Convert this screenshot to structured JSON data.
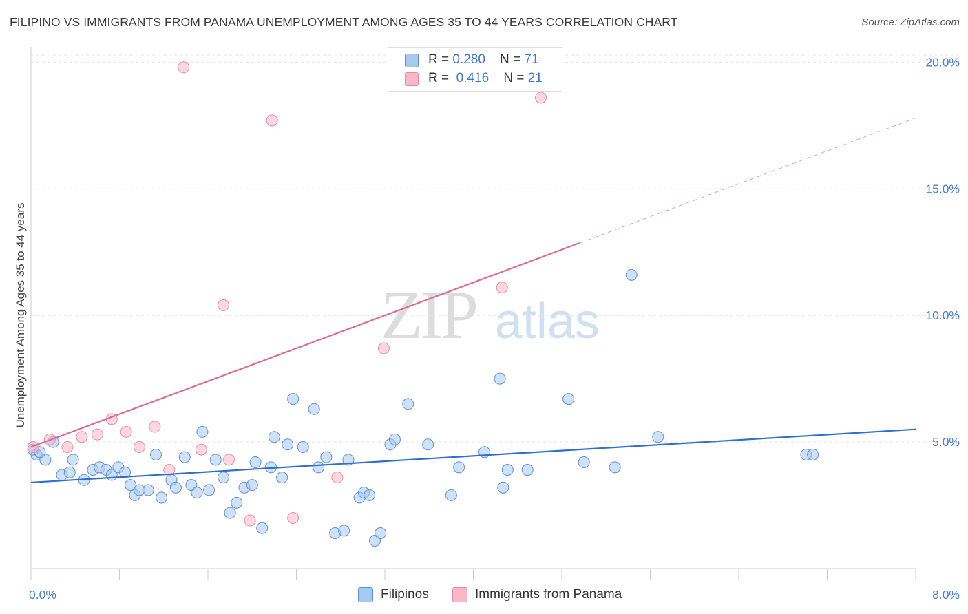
{
  "header": {
    "title": "FILIPINO VS IMMIGRANTS FROM PANAMA UNEMPLOYMENT AMONG AGES 35 TO 44 YEARS CORRELATION CHART",
    "source": "Source: ZipAtlas.com"
  },
  "watermark": {
    "zip": "ZIP",
    "atlas": "atlas"
  },
  "legend": {
    "rows": [
      {
        "r_label": "R = ",
        "r_value": "0.280",
        "n_label": "N = ",
        "n_value": "71",
        "color": "#a8c8f0"
      },
      {
        "r_label": "R = ",
        "r_value": "0.416",
        "n_label": "N = ",
        "n_value": "21",
        "color": "#f7b8c8"
      }
    ]
  },
  "bottom_legend": [
    {
      "label": "Filipinos",
      "color": "#a8c8f0"
    },
    {
      "label": "Immigrants from Panama",
      "color": "#f7b8c8"
    }
  ],
  "chart_data": {
    "type": "scatter",
    "title": "FILIPINO VS IMMIGRANTS FROM PANAMA UNEMPLOYMENT AMONG AGES 35 TO 44 YEARS CORRELATION CHART",
    "xlabel": "",
    "ylabel": "Unemployment Among Ages 35 to 44 years",
    "xlim": [
      0,
      8
    ],
    "ylim": [
      0,
      20.5
    ],
    "x_tick_labels": [
      {
        "value": 0,
        "label": "0.0%"
      },
      {
        "value": 8,
        "label": "8.0%"
      }
    ],
    "y_tick_labels": [
      {
        "value": 5,
        "label": "5.0%"
      },
      {
        "value": 10,
        "label": "10.0%"
      },
      {
        "value": 15,
        "label": "15.0%"
      },
      {
        "value": 20,
        "label": "20.0%"
      }
    ],
    "grid": "horizontal dashed",
    "legend_position": "top-center",
    "series": [
      {
        "name": "Filipinos",
        "color": "#a8c8f0",
        "stroke": "#5b8fd6",
        "trend_color": "#2f6fcc",
        "trend": {
          "x0": 0,
          "y0": 3.4,
          "x1": 8,
          "y1": 5.5,
          "solid_until": 8
        },
        "points": [
          [
            0.05,
            4.5
          ],
          [
            0.13,
            4.3
          ],
          [
            0.38,
            4.3
          ],
          [
            0.28,
            3.7
          ],
          [
            0.35,
            3.8
          ],
          [
            0.48,
            3.5
          ],
          [
            0.56,
            3.9
          ],
          [
            0.62,
            4.0
          ],
          [
            0.68,
            3.9
          ],
          [
            0.73,
            3.7
          ],
          [
            0.79,
            4.0
          ],
          [
            0.85,
            3.8
          ],
          [
            0.9,
            3.3
          ],
          [
            0.94,
            2.9
          ],
          [
            0.98,
            3.1
          ],
          [
            1.06,
            3.1
          ],
          [
            1.13,
            4.5
          ],
          [
            1.18,
            2.8
          ],
          [
            1.27,
            3.5
          ],
          [
            1.31,
            3.2
          ],
          [
            1.39,
            4.4
          ],
          [
            1.45,
            3.3
          ],
          [
            1.5,
            3.0
          ],
          [
            1.55,
            5.4
          ],
          [
            1.61,
            3.1
          ],
          [
            1.67,
            4.3
          ],
          [
            1.74,
            3.6
          ],
          [
            1.8,
            2.2
          ],
          [
            1.86,
            2.6
          ],
          [
            1.93,
            3.2
          ],
          [
            2.0,
            3.3
          ],
          [
            2.03,
            4.2
          ],
          [
            2.09,
            1.6
          ],
          [
            2.17,
            4.0
          ],
          [
            2.2,
            5.2
          ],
          [
            2.27,
            3.6
          ],
          [
            2.32,
            4.9
          ],
          [
            2.37,
            6.7
          ],
          [
            2.46,
            4.8
          ],
          [
            2.56,
            6.3
          ],
          [
            2.6,
            4.0
          ],
          [
            2.67,
            4.4
          ],
          [
            2.75,
            1.4
          ],
          [
            2.83,
            1.5
          ],
          [
            2.87,
            4.3
          ],
          [
            2.97,
            2.8
          ],
          [
            3.01,
            3.0
          ],
          [
            3.06,
            2.9
          ],
          [
            3.11,
            1.1
          ],
          [
            3.16,
            1.4
          ],
          [
            3.25,
            4.9
          ],
          [
            3.29,
            5.1
          ],
          [
            3.41,
            6.5
          ],
          [
            3.59,
            4.9
          ],
          [
            3.8,
            2.9
          ],
          [
            3.87,
            4.0
          ],
          [
            4.1,
            4.6
          ],
          [
            4.24,
            7.5
          ],
          [
            4.27,
            3.2
          ],
          [
            4.31,
            3.9
          ],
          [
            4.49,
            3.9
          ],
          [
            4.86,
            6.7
          ],
          [
            5.0,
            4.2
          ],
          [
            5.28,
            4.0
          ],
          [
            5.43,
            11.6
          ],
          [
            5.67,
            5.2
          ],
          [
            7.01,
            4.5
          ],
          [
            7.07,
            4.5
          ],
          [
            0.02,
            4.7
          ],
          [
            0.08,
            4.6
          ],
          [
            0.2,
            5.0
          ]
        ]
      },
      {
        "name": "Immigrants from Panama",
        "color": "#f7b8c8",
        "stroke": "#e88aa6",
        "trend_color": "#e06b92",
        "trend": {
          "x0": 0,
          "y0": 4.8,
          "x1": 8,
          "y1": 17.8,
          "solid_until": 4.96
        },
        "points": [
          [
            0.02,
            4.8
          ],
          [
            0.17,
            5.1
          ],
          [
            0.33,
            4.8
          ],
          [
            0.46,
            5.2
          ],
          [
            0.6,
            5.3
          ],
          [
            0.73,
            5.9
          ],
          [
            0.86,
            5.4
          ],
          [
            0.98,
            4.8
          ],
          [
            1.12,
            5.6
          ],
          [
            1.25,
            3.9
          ],
          [
            1.38,
            19.8
          ],
          [
            1.54,
            4.7
          ],
          [
            1.74,
            10.4
          ],
          [
            1.79,
            4.3
          ],
          [
            1.98,
            1.9
          ],
          [
            2.18,
            17.7
          ],
          [
            2.37,
            2.0
          ],
          [
            2.77,
            3.6
          ],
          [
            3.19,
            8.7
          ],
          [
            4.26,
            11.1
          ],
          [
            4.61,
            18.6
          ]
        ]
      }
    ]
  }
}
